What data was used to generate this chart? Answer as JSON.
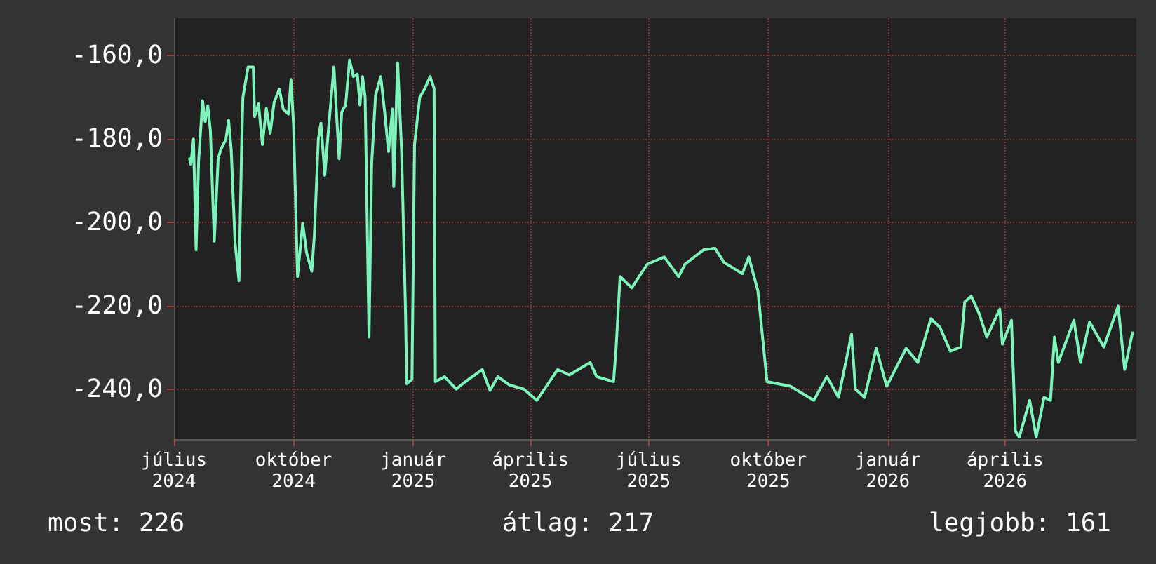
{
  "chart_data": {
    "type": "line",
    "x": [
      "2024-07-13",
      "2024-07-14",
      "2024-07-16",
      "2024-07-18",
      "2024-07-20",
      "2024-07-23",
      "2024-07-25",
      "2024-07-27",
      "2024-07-29",
      "2024-08-01",
      "2024-08-04",
      "2024-08-06",
      "2024-08-10",
      "2024-08-12",
      "2024-08-14",
      "2024-08-17",
      "2024-08-20",
      "2024-08-22",
      "2024-08-23",
      "2024-08-27",
      "2024-08-31",
      "2024-09-01",
      "2024-09-04",
      "2024-09-07",
      "2024-09-10",
      "2024-09-13",
      "2024-09-16",
      "2024-09-20",
      "2024-09-23",
      "2024-09-27",
      "2024-09-29",
      "2024-10-01",
      "2024-10-04",
      "2024-10-08",
      "2024-10-11",
      "2024-10-15",
      "2024-10-17",
      "2024-10-20",
      "2024-10-22",
      "2024-10-25",
      "2024-10-28",
      "2024-11-01",
      "2024-11-03",
      "2024-11-05",
      "2024-11-07",
      "2024-11-10",
      "2024-11-13",
      "2024-11-16",
      "2024-11-19",
      "2024-11-21",
      "2024-11-23",
      "2024-11-25",
      "2024-11-28",
      "2024-11-30",
      "2024-12-03",
      "2024-12-07",
      "2024-12-10",
      "2024-12-13",
      "2024-12-16",
      "2024-12-17",
      "2024-12-20",
      "2024-12-23",
      "2024-12-26",
      "2024-12-27",
      "2024-12-31",
      "2025-01-02",
      "2025-01-06",
      "2025-01-10",
      "2025-01-14",
      "2025-01-17",
      "2025-01-18",
      "2025-01-25",
      "2025-02-03",
      "2025-02-10",
      "2025-02-23",
      "2025-03-01",
      "2025-03-07",
      "2025-03-16",
      "2025-03-27",
      "2025-04-06",
      "2025-04-22",
      "2025-05-01",
      "2025-05-17",
      "2025-05-22",
      "2025-06-04",
      "2025-06-06",
      "2025-06-09",
      "2025-06-18",
      "2025-06-23",
      "2025-06-30",
      "2025-07-13",
      "2025-07-24",
      "2025-07-29",
      "2025-08-12",
      "2025-08-21",
      "2025-08-28",
      "2025-09-11",
      "2025-09-16",
      "2025-09-23",
      "2025-09-28",
      "2025-09-30",
      "2025-10-18",
      "2025-11-05",
      "2025-11-15",
      "2025-11-24",
      "2025-12-04",
      "2025-12-07",
      "2025-12-14",
      "2025-12-23",
      "2025-12-31",
      "2026-01-15",
      "2026-01-24",
      "2026-02-03",
      "2026-02-10",
      "2026-02-18",
      "2026-02-26",
      "2026-03-01",
      "2026-03-06",
      "2026-03-12",
      "2026-03-18",
      "2026-03-28",
      "2026-03-30",
      "2026-04-06",
      "2026-04-09",
      "2026-04-12",
      "2026-04-20",
      "2026-04-25",
      "2026-05-01",
      "2026-05-06",
      "2026-05-09",
      "2026-05-12",
      "2026-05-24",
      "2026-05-29",
      "2026-06-05",
      "2026-06-16",
      "2026-06-27",
      "2026-07-02",
      "2026-07-08"
    ],
    "series": [
      {
        "color": "#7cf4bb",
        "values": [
          -184.7,
          -186,
          -180,
          -206.6,
          -185,
          -170.8,
          -175.8,
          -172,
          -178,
          -204.5,
          -184.7,
          -182.5,
          -180,
          -175.5,
          -182.5,
          -205,
          -214,
          -182.5,
          -170,
          -162.7,
          -162.7,
          -174.6,
          -171.5,
          -181.3,
          -172.6,
          -178.6,
          -171.2,
          -168,
          -172.8,
          -174,
          -165.7,
          -176.9,
          -213,
          -200.2,
          -207.3,
          -211.7,
          -202.8,
          -180,
          -176.2,
          -188.7,
          -176.9,
          -162.7,
          -174,
          -184.7,
          -173.5,
          -171.8,
          -161,
          -165,
          -164.4,
          -171.8,
          -165,
          -170,
          -227.5,
          -186,
          -169.5,
          -165,
          -173.5,
          -183,
          -172.8,
          -191.4,
          -161.7,
          -182.5,
          -220.8,
          -238.7,
          -237.6,
          -181.3,
          -170,
          -167.8,
          -165,
          -167.8,
          -238.2,
          -237,
          -240,
          -238.2,
          -235.3,
          -240.3,
          -237,
          -239,
          -240,
          -242.7,
          -235.3,
          -236.6,
          -233.6,
          -237,
          -238.2,
          -229.9,
          -213,
          -215.7,
          -213.3,
          -210,
          -208.3,
          -213,
          -210,
          -206.6,
          -206.2,
          -209.6,
          -212.3,
          -208.3,
          -216.4,
          -231.9,
          -238.2,
          -239.3,
          -242.7,
          -237,
          -242,
          -226.8,
          -240,
          -242,
          -230.2,
          -239.3,
          -230.2,
          -233.6,
          -223.1,
          -225.2,
          -230.9,
          -229.9,
          -219.1,
          -217.7,
          -221.8,
          -227.5,
          -220.8,
          -229.2,
          -223.5,
          -250.1,
          -251.5,
          -242.7,
          -251.5,
          -242,
          -242.7,
          -227.5,
          -233.6,
          -223.5,
          -233.6,
          -223.9,
          -229.9,
          -220.1,
          -235.3,
          -226.5
        ]
      }
    ],
    "xlim": [
      "2024-07-01",
      "2026-07-11"
    ],
    "xticks": [
      {
        "value": "2024-07-01",
        "label": "július 2024"
      },
      {
        "value": "2024-10-01",
        "label": "október 2024"
      },
      {
        "value": "2025-01-01",
        "label": "január 2025"
      },
      {
        "value": "2025-04-01",
        "label": "április 2025"
      },
      {
        "value": "2025-07-01",
        "label": "július 2025"
      },
      {
        "value": "2025-10-01",
        "label": "október 2025"
      },
      {
        "value": "2026-01-01",
        "label": "január 2026"
      },
      {
        "value": "2026-04-01",
        "label": "április 2026"
      }
    ],
    "ylim": [
      -252,
      -151
    ],
    "yticks": [
      {
        "value": -240,
        "label": "-240,0"
      },
      {
        "value": -220,
        "label": "-220,0"
      },
      {
        "value": -200,
        "label": "-200,0"
      },
      {
        "value": -180,
        "label": "-180,0"
      },
      {
        "value": -160,
        "label": "-160,0"
      }
    ],
    "grid": true,
    "annotations": [
      "most: 226",
      "átlag: 217",
      "legjobb: 161"
    ]
  }
}
